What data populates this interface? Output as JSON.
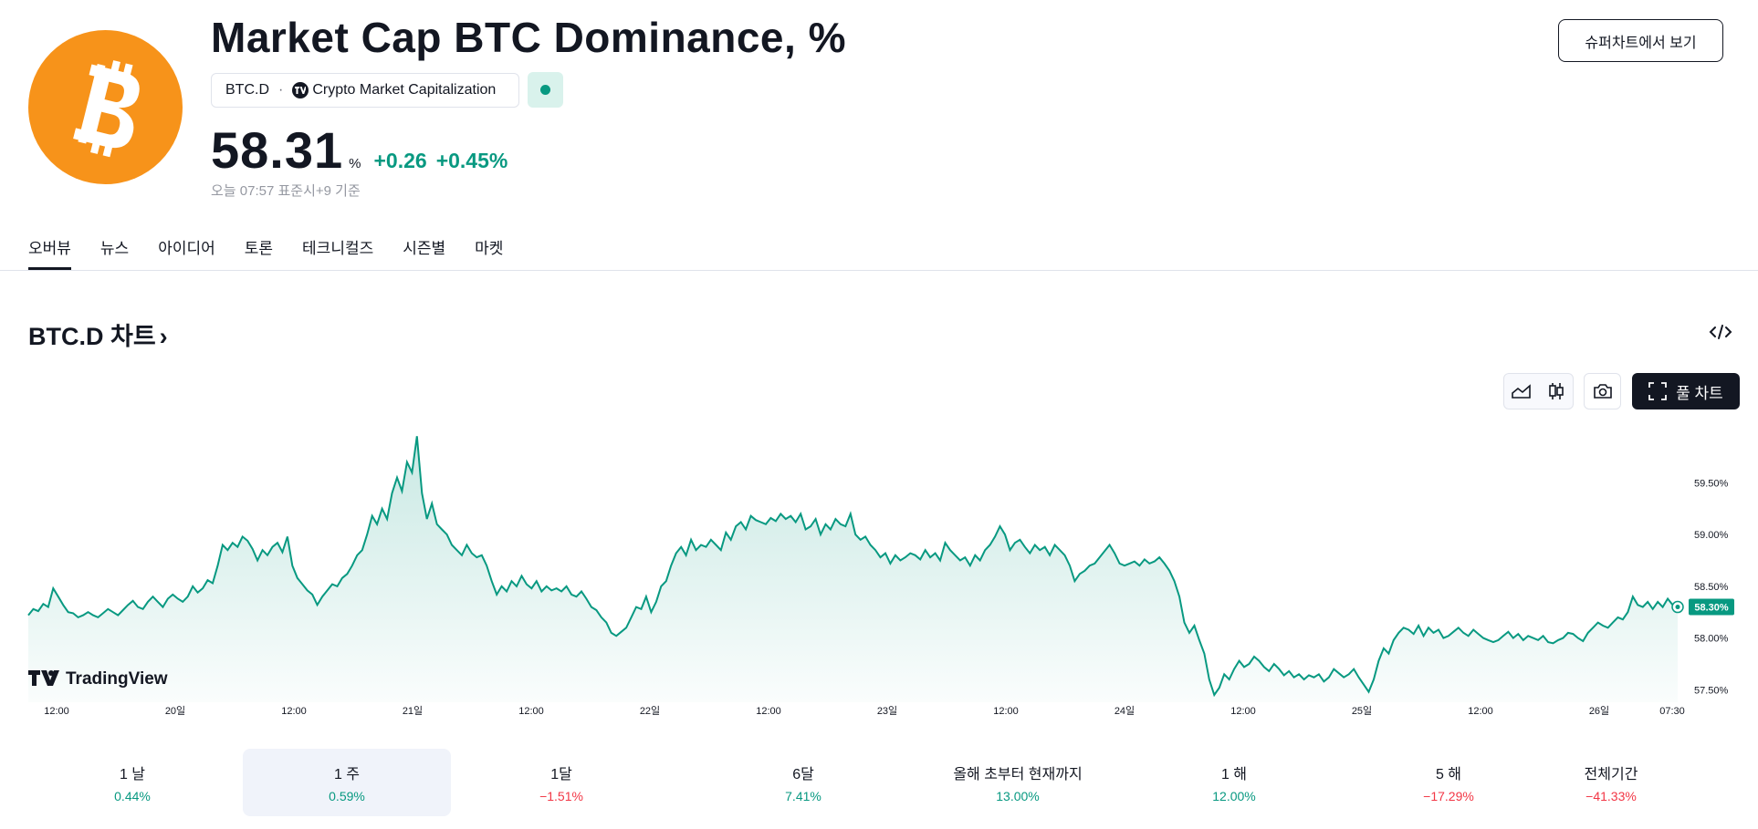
{
  "header": {
    "title": "Market Cap BTC Dominance, %",
    "symbol": "BTC.D",
    "separator": "·",
    "exchange": "Crypto Market Capitalization",
    "price": "58.31",
    "price_unit": "%",
    "change_abs": "+0.26",
    "change_pct": "+0.45%",
    "time_note": "오늘 07:57 표준시+9 기준",
    "supercharts_button": "슈퍼차트에서 보기",
    "market_status": "open",
    "logo_icon": "bitcoin-icon",
    "accent_color": "#089981"
  },
  "tabs": [
    {
      "label": "오버뷰",
      "active": true
    },
    {
      "label": "뉴스",
      "active": false
    },
    {
      "label": "아이디어",
      "active": false
    },
    {
      "label": "토론",
      "active": false
    },
    {
      "label": "테크니컬즈",
      "active": false
    },
    {
      "label": "시즌별",
      "active": false
    },
    {
      "label": "마켓",
      "active": false
    }
  ],
  "chart_section": {
    "title": "BTC.D 차트",
    "chevron": "›",
    "full_chart_label": "풀 차트",
    "watermark": "TradingView",
    "toolbar_icons": [
      "area-chart-icon",
      "candlestick-icon",
      "camera-icon",
      "fullscreen-icon",
      "embed-code-icon"
    ]
  },
  "chart_data": {
    "type": "area",
    "title": "",
    "xlabel": "",
    "ylabel": "",
    "x_ticks": [
      "12:00",
      "20일",
      "12:00",
      "21일",
      "12:00",
      "22일",
      "12:00",
      "23일",
      "12:00",
      "24일",
      "12:00",
      "25일",
      "12:00",
      "26일",
      "07:30"
    ],
    "y_ticks": [
      "59.50%",
      "59.00%",
      "58.50%",
      "58.00%",
      "57.50%"
    ],
    "ylim": [
      57.45,
      60.05
    ],
    "last_value_label": "58.30%",
    "last_value": 58.3,
    "line_color": "#089981",
    "grid": false,
    "series": [
      {
        "values": [
          58.22,
          58.28,
          58.26,
          58.33,
          58.3,
          58.48,
          58.4,
          58.32,
          58.25,
          58.24,
          58.2,
          58.22,
          58.25,
          58.22,
          58.2,
          58.24,
          58.28,
          58.25,
          58.22,
          58.27,
          58.32,
          58.36,
          58.3,
          58.28,
          58.35,
          58.4,
          58.35,
          58.3,
          58.38,
          58.42,
          58.38,
          58.35,
          58.4,
          58.5,
          58.44,
          58.48,
          58.56,
          58.53,
          58.7,
          58.9,
          58.85,
          58.92,
          58.88,
          58.98,
          58.94,
          58.86,
          58.75,
          58.85,
          58.8,
          58.88,
          58.92,
          58.83,
          58.98,
          58.7,
          58.58,
          58.52,
          58.46,
          58.42,
          58.32,
          58.4,
          58.46,
          58.52,
          58.5,
          58.58,
          58.62,
          58.7,
          58.8,
          58.85,
          59.0,
          59.18,
          59.1,
          59.25,
          59.15,
          59.4,
          59.55,
          59.42,
          59.7,
          59.6,
          59.95,
          59.4,
          59.15,
          59.3,
          59.1,
          59.05,
          59.0,
          58.9,
          58.85,
          58.8,
          58.9,
          58.82,
          58.78,
          58.8,
          58.7,
          58.55,
          58.42,
          58.5,
          58.45,
          58.55,
          58.5,
          58.6,
          58.52,
          58.48,
          58.55,
          58.45,
          58.5,
          58.46,
          58.48,
          58.45,
          58.5,
          58.42,
          58.4,
          58.45,
          58.38,
          58.3,
          58.27,
          58.2,
          58.15,
          58.05,
          58.02,
          58.06,
          58.1,
          58.2,
          58.3,
          58.28,
          58.4,
          58.25,
          58.35,
          58.5,
          58.55,
          58.7,
          58.82,
          58.88,
          58.8,
          58.95,
          58.85,
          58.9,
          58.88,
          58.95,
          58.9,
          58.85,
          59.02,
          58.95,
          59.08,
          59.12,
          59.05,
          59.18,
          59.14,
          59.12,
          59.1,
          59.16,
          59.13,
          59.2,
          59.15,
          59.18,
          59.12,
          59.2,
          59.05,
          59.08,
          59.15,
          59.0,
          59.1,
          59.05,
          59.15,
          59.1,
          59.08,
          59.2,
          59.0,
          58.95,
          58.98,
          58.9,
          58.85,
          58.78,
          58.82,
          58.72,
          58.8,
          58.75,
          58.78,
          58.82,
          58.8,
          58.76,
          58.85,
          58.78,
          58.82,
          58.75,
          58.92,
          58.85,
          58.8,
          58.75,
          58.78,
          58.7,
          58.8,
          58.75,
          58.85,
          58.9,
          58.98,
          59.08,
          59.0,
          58.85,
          58.92,
          58.95,
          58.88,
          58.82,
          58.9,
          58.85,
          58.88,
          58.8,
          58.9,
          58.85,
          58.8,
          58.7,
          58.55,
          58.62,
          58.65,
          58.7,
          58.72,
          58.78,
          58.84,
          58.9,
          58.82,
          58.72,
          58.7,
          58.72,
          58.74,
          58.7,
          58.76,
          58.72,
          58.74,
          58.78,
          58.72,
          58.65,
          58.55,
          58.4,
          58.15,
          58.05,
          58.12,
          57.98,
          57.85,
          57.6,
          57.45,
          57.52,
          57.65,
          57.6,
          57.7,
          57.78,
          57.72,
          57.75,
          57.82,
          57.78,
          57.72,
          57.68,
          57.75,
          57.7,
          57.64,
          57.68,
          57.62,
          57.65,
          57.6,
          57.64,
          57.62,
          57.65,
          57.58,
          57.62,
          57.7,
          57.66,
          57.62,
          57.65,
          57.7,
          57.62,
          57.55,
          57.48,
          57.6,
          57.78,
          57.9,
          57.85,
          57.98,
          58.05,
          58.1,
          58.08,
          58.04,
          58.12,
          58.02,
          58.1,
          58.05,
          58.08,
          58.0,
          58.02,
          58.06,
          58.1,
          58.05,
          58.02,
          58.08,
          58.04,
          58.0,
          57.98,
          57.96,
          57.98,
          58.02,
          58.06,
          58.0,
          58.04,
          57.98,
          58.02,
          58.0,
          57.98,
          58.02,
          57.96,
          57.95,
          57.98,
          58.0,
          58.05,
          58.04,
          58.0,
          57.97,
          58.05,
          58.1,
          58.15,
          58.12,
          58.1,
          58.15,
          58.2,
          58.18,
          58.25,
          58.4,
          58.32,
          58.3,
          58.35,
          58.28,
          58.35,
          58.3,
          58.38,
          58.32,
          58.3
        ]
      }
    ]
  },
  "periods": [
    {
      "label": "1 날",
      "value": "0.44%",
      "dir": "pos",
      "active": false
    },
    {
      "label": "1 주",
      "value": "0.59%",
      "dir": "pos",
      "active": true
    },
    {
      "label": "1달",
      "value": "−1.51%",
      "dir": "neg",
      "active": false
    },
    {
      "label": "6달",
      "value": "7.41%",
      "dir": "pos",
      "active": false
    },
    {
      "label": "올해 초부터 현재까지",
      "value": "13.00%",
      "dir": "pos",
      "active": false
    },
    {
      "label": "1 해",
      "value": "12.00%",
      "dir": "pos",
      "active": false
    },
    {
      "label": "5 해",
      "value": "−17.29%",
      "dir": "neg",
      "active": false
    },
    {
      "label": "전체기간",
      "value": "−41.33%",
      "dir": "neg",
      "active": false
    }
  ]
}
